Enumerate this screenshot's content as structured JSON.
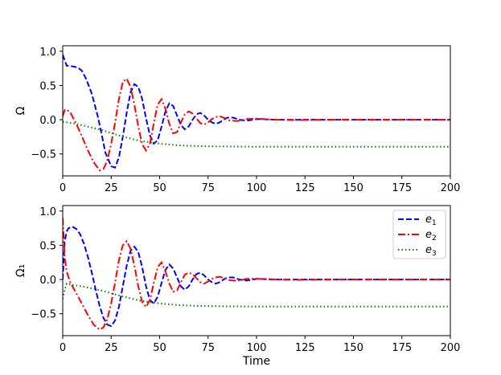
{
  "chart_data": [
    {
      "type": "line",
      "title": "",
      "xlabel": "",
      "ylabel": "Ω",
      "xlim": [
        0,
        200
      ],
      "ylim": [
        -0.82,
        1.08
      ],
      "xticks": [
        "0",
        "25",
        "50",
        "75",
        "100",
        "125",
        "150",
        "175",
        "200"
      ],
      "yticks": [
        "−0.5",
        "0.0",
        "0.5",
        "1.0"
      ],
      "grid": false,
      "legend": null,
      "series": [
        {
          "name": "",
          "color": "#0000ff",
          "dash": "dashed",
          "x": [
            0,
            2,
            5,
            8,
            10,
            12,
            15,
            18,
            20,
            22,
            25,
            27,
            29,
            31,
            33,
            35,
            37,
            39,
            41,
            43,
            45,
            47,
            49,
            51,
            53,
            55,
            57,
            59,
            61,
            63,
            65,
            67,
            69,
            71,
            73,
            75,
            77,
            79,
            81,
            83,
            85,
            88,
            91,
            95,
            100,
            110,
            120,
            140,
            160,
            180,
            200
          ],
          "y": [
            0.95,
            0.79,
            0.78,
            0.76,
            0.71,
            0.6,
            0.38,
            0.06,
            -0.2,
            -0.48,
            -0.68,
            -0.7,
            -0.55,
            -0.25,
            0.1,
            0.4,
            0.52,
            0.48,
            0.3,
            0.02,
            -0.23,
            -0.35,
            -0.3,
            -0.1,
            0.12,
            0.24,
            0.2,
            0.06,
            -0.08,
            -0.14,
            -0.1,
            0.0,
            0.08,
            0.1,
            0.06,
            0.0,
            -0.04,
            -0.06,
            -0.04,
            0.0,
            0.03,
            0.03,
            0.0,
            -0.015,
            0.01,
            0.0,
            0.0,
            0.0,
            0.0,
            0.0,
            0.0
          ]
        },
        {
          "name": "",
          "color": "#ff0000",
          "dash": "dashdot",
          "x": [
            0,
            1,
            2,
            4,
            7,
            10,
            13,
            16,
            19,
            21,
            23,
            25,
            27,
            29,
            31,
            33,
            35,
            37,
            39,
            41,
            43,
            45,
            47,
            49,
            51,
            53,
            55,
            57,
            59,
            61,
            63,
            65,
            67,
            69,
            71,
            73,
            75,
            77,
            79,
            81,
            83,
            86,
            90,
            95,
            100,
            110,
            120,
            140,
            160,
            180,
            200
          ],
          "y": [
            0.05,
            0.14,
            0.15,
            0.1,
            -0.06,
            -0.25,
            -0.45,
            -0.62,
            -0.74,
            -0.72,
            -0.6,
            -0.35,
            -0.05,
            0.3,
            0.55,
            0.6,
            0.48,
            0.22,
            -0.1,
            -0.36,
            -0.45,
            -0.35,
            -0.05,
            0.22,
            0.3,
            0.16,
            -0.06,
            -0.2,
            -0.18,
            -0.04,
            0.08,
            0.12,
            0.09,
            0.02,
            -0.05,
            -0.07,
            -0.04,
            0.01,
            0.04,
            0.05,
            0.03,
            -0.01,
            -0.02,
            0.01,
            0.015,
            0.0,
            -0.005,
            0.0,
            0.0,
            0.0,
            0.0
          ]
        },
        {
          "name": "",
          "color": "#008000",
          "dash": "dotted",
          "x": [
            0,
            5,
            10,
            20,
            30,
            40,
            50,
            60,
            70,
            80,
            100,
            125,
            150,
            175,
            200
          ],
          "y": [
            -0.03,
            -0.05,
            -0.08,
            -0.15,
            -0.24,
            -0.31,
            -0.35,
            -0.375,
            -0.385,
            -0.39,
            -0.395,
            -0.395,
            -0.395,
            -0.395,
            -0.395
          ]
        }
      ]
    },
    {
      "type": "line",
      "title": "",
      "xlabel": "Time",
      "ylabel": "Ω₁",
      "xlim": [
        0,
        200
      ],
      "ylim": [
        -0.82,
        1.08
      ],
      "xticks": [
        "0",
        "25",
        "50",
        "75",
        "100",
        "125",
        "150",
        "175",
        "200"
      ],
      "yticks": [
        "−0.5",
        "0.0",
        "0.5",
        "1.0"
      ],
      "grid": false,
      "legend": "top-right",
      "series": [
        {
          "name": "e1",
          "color": "#0000ff",
          "dash": "dashed",
          "x": [
            0,
            1,
            2,
            3,
            5,
            7,
            9,
            11,
            13,
            15,
            17,
            19,
            21,
            23,
            25,
            27,
            29,
            31,
            33,
            35,
            37,
            39,
            41,
            43,
            45,
            47,
            49,
            51,
            53,
            55,
            57,
            59,
            61,
            63,
            65,
            67,
            69,
            71,
            73,
            75,
            77,
            79,
            81,
            83,
            85,
            88,
            91,
            95,
            100,
            110,
            120,
            140,
            160,
            180,
            200
          ],
          "y": [
            0.0,
            0.55,
            0.7,
            0.75,
            0.77,
            0.74,
            0.66,
            0.52,
            0.33,
            0.1,
            -0.15,
            -0.38,
            -0.56,
            -0.66,
            -0.68,
            -0.6,
            -0.4,
            -0.1,
            0.2,
            0.42,
            0.48,
            0.4,
            0.18,
            -0.1,
            -0.3,
            -0.35,
            -0.25,
            -0.05,
            0.14,
            0.22,
            0.16,
            0.03,
            -0.1,
            -0.15,
            -0.1,
            0.0,
            0.08,
            0.1,
            0.06,
            0.0,
            -0.04,
            -0.06,
            -0.04,
            0.0,
            0.03,
            0.03,
            0.0,
            -0.015,
            0.01,
            0.0,
            0.0,
            0.0,
            0.0,
            0.0,
            0.0
          ]
        },
        {
          "name": "e2",
          "color": "#ff0000",
          "dash": "dashdot",
          "x": [
            0,
            1,
            2,
            4,
            7,
            10,
            13,
            16,
            19,
            21,
            23,
            25,
            27,
            29,
            31,
            33,
            35,
            37,
            39,
            41,
            43,
            45,
            47,
            49,
            51,
            53,
            55,
            57,
            59,
            61,
            63,
            65,
            67,
            69,
            71,
            73,
            75,
            77,
            79,
            81,
            83,
            86,
            90,
            95,
            100,
            110,
            120,
            140,
            160,
            180,
            200
          ],
          "y": [
            0.9,
            0.35,
            0.12,
            -0.05,
            -0.2,
            -0.36,
            -0.52,
            -0.66,
            -0.73,
            -0.7,
            -0.58,
            -0.35,
            -0.05,
            0.28,
            0.5,
            0.56,
            0.45,
            0.2,
            -0.1,
            -0.33,
            -0.4,
            -0.3,
            -0.05,
            0.18,
            0.25,
            0.12,
            -0.06,
            -0.18,
            -0.16,
            -0.04,
            0.07,
            0.1,
            0.08,
            0.02,
            -0.04,
            -0.06,
            -0.03,
            0.01,
            0.03,
            0.04,
            0.02,
            -0.01,
            -0.02,
            0.01,
            0.01,
            0.0,
            -0.005,
            0.0,
            0.0,
            0.0,
            0.0
          ]
        },
        {
          "name": "e3",
          "color": "#008000",
          "dash": "dotted",
          "x": [
            0,
            1,
            2,
            5,
            10,
            20,
            30,
            40,
            50,
            60,
            70,
            80,
            100,
            125,
            150,
            175,
            200
          ],
          "y": [
            -0.28,
            -0.15,
            -0.06,
            -0.08,
            -0.1,
            -0.16,
            -0.24,
            -0.31,
            -0.35,
            -0.375,
            -0.385,
            -0.39,
            -0.395,
            -0.395,
            -0.395,
            -0.395,
            -0.395
          ]
        }
      ]
    }
  ]
}
